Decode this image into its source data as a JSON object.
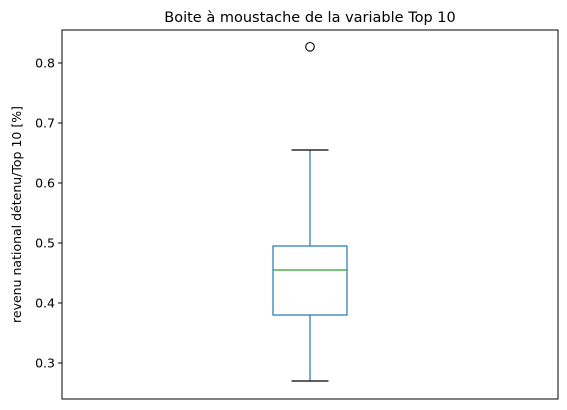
{
  "chart_data": {
    "type": "box",
    "title": "Boite à moustache de la variable Top 10",
    "xlabel": "",
    "ylabel": "revenu national détenu/Top 10 [%]",
    "ylim": [
      0.24,
      0.855
    ],
    "yticks": [
      "0.3",
      "0.4",
      "0.5",
      "0.6",
      "0.7",
      "0.8"
    ],
    "grid": false,
    "legend": "none",
    "box": {
      "whisker_low": 0.27,
      "q1": 0.38,
      "median": 0.455,
      "q3": 0.495,
      "whisker_high": 0.655,
      "outliers": [
        0.827
      ]
    },
    "colors": {
      "box": "#1f77b4",
      "median": "#2ca02c",
      "cap": "#000000",
      "outlier": "#000000"
    }
  }
}
